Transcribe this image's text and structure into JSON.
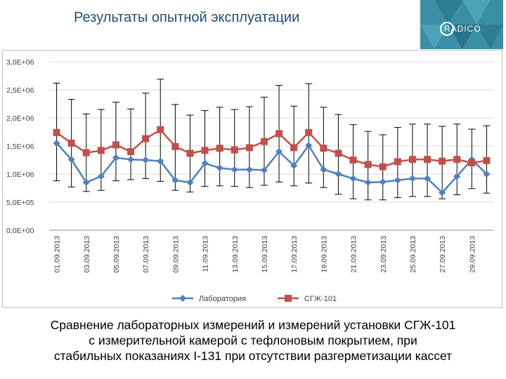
{
  "header": {
    "title": "Результаты опытной эксплуатации",
    "logo_text": "RADICO"
  },
  "caption": {
    "line1": "Сравнение лабораторных измерений и измерений установки СГЖ-101",
    "line2": "с измерительной камерой с тефлоновым покрытием, при",
    "line3": "стабильных показаниях I-131 при отсутствии разгерметизации кассет"
  },
  "colors": {
    "lab": "#4f81bd",
    "sgzh": "#c0504d",
    "error_bar": "#000000",
    "grid": "#d9d9d9",
    "logo_bg": "#3b8ea5"
  },
  "chart_data": {
    "type": "line",
    "y_tick_labels": [
      "0,0E+00",
      "5,0E+05",
      "1,0E+06",
      "1,5E+06",
      "2,0E+06",
      "2,5E+06",
      "3,0E+06"
    ],
    "y_ticks": [
      0,
      500000,
      1000000,
      1500000,
      2000000,
      2500000,
      3000000
    ],
    "ylim": [
      0,
      3000000
    ],
    "x_tick_labels": [
      "01.09.2013",
      "03.09.2013",
      "05.09.2013",
      "07.09.2013",
      "09.09.2013",
      "11.09.2013",
      "13.09.2013",
      "15.09.2013",
      "17.09.2013",
      "19.09.2013",
      "21.09.2013",
      "23.09.2013",
      "25.09.2013",
      "27.09.2013",
      "29.09.2013"
    ],
    "grid": true,
    "legend_position": "bottom",
    "series": [
      {
        "name": "Лаборатория",
        "marker": "diamond",
        "values": [
          1550000,
          1260000,
          850000,
          960000,
          1290000,
          1260000,
          1250000,
          1230000,
          890000,
          850000,
          1190000,
          1110000,
          1080000,
          1080000,
          1070000,
          1400000,
          1150000,
          1510000,
          1080000,
          1000000,
          920000,
          850000,
          860000,
          890000,
          920000,
          920000,
          670000,
          960000,
          1260000,
          1000000
        ],
        "error_low": [
          880000,
          770000,
          690000,
          710000,
          880000,
          900000,
          920000,
          870000,
          710000,
          680000,
          780000,
          790000,
          780000,
          760000,
          800000,
          860000,
          790000,
          840000,
          760000,
          640000,
          560000,
          540000,
          540000,
          580000,
          600000,
          600000,
          560000,
          630000,
          740000,
          660000
        ]
      },
      {
        "name": "СГЖ-101",
        "marker": "square",
        "values": [
          1740000,
          1550000,
          1380000,
          1420000,
          1520000,
          1400000,
          1630000,
          1790000,
          1490000,
          1370000,
          1420000,
          1460000,
          1430000,
          1470000,
          1580000,
          1720000,
          1470000,
          1740000,
          1460000,
          1370000,
          1250000,
          1170000,
          1130000,
          1220000,
          1260000,
          1260000,
          1230000,
          1260000,
          1200000,
          1240000
        ],
        "error_high": [
          2620000,
          2330000,
          2070000,
          2150000,
          2280000,
          2160000,
          2440000,
          2690000,
          2240000,
          2050000,
          2130000,
          2190000,
          2150000,
          2200000,
          2370000,
          2580000,
          2210000,
          2610000,
          2190000,
          2060000,
          1880000,
          1760000,
          1700000,
          1830000,
          1890000,
          1890000,
          1850000,
          1890000,
          1800000,
          1860000
        ]
      }
    ]
  }
}
